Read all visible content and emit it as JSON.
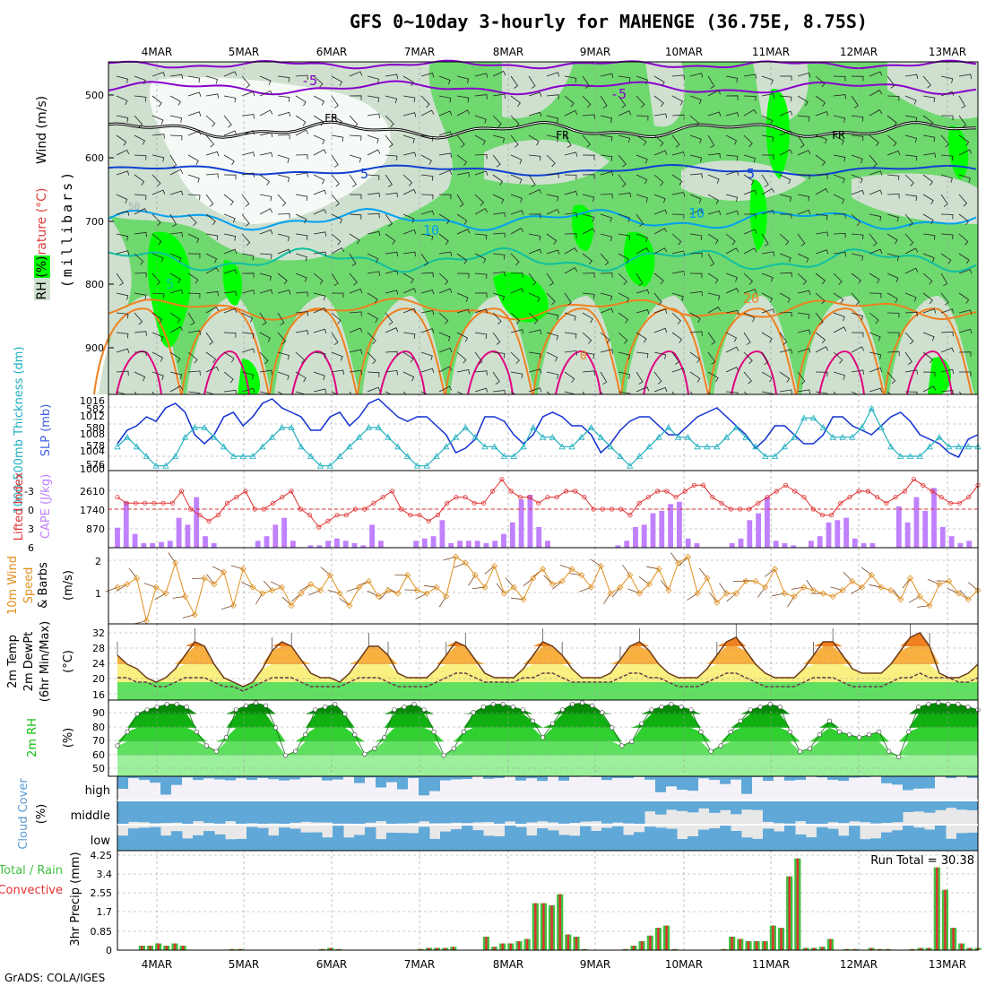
{
  "title": "GFS 0~10day 3-hourly for MAHENGE (36.75E, 8.75S)",
  "footer": "GrADS: COLA/IGES",
  "dates": [
    "4MAR",
    "5MAR",
    "6MAR",
    "7MAR",
    "8MAR",
    "9MAR",
    "10MAR",
    "11MAR",
    "12MAR",
    "13MAR"
  ],
  "colors": {
    "rh_dark": "#6fd86f",
    "rh_light": "#cfe0cf",
    "rh_bright": "#00ff00",
    "purple": "#8800cc",
    "blue": "#1040d0",
    "cyan": "#00a0f0",
    "teal": "#10c0a0",
    "orange": "#f08020",
    "magenta": "#e00080",
    "slp": "#1030d0",
    "thick": "#20b0c0",
    "li": "#e03030",
    "cape": "#c080ff",
    "wind10": "#e09020",
    "temp_hot": "#f08020",
    "temp_warm": "#f8b040",
    "temp_mild": "#f8f080",
    "temp_cool": "#60e060",
    "rh2m": "#10c010",
    "cloud": "#60a8d8",
    "cloud_bg": "#e8e8e8",
    "precip_total": "#40c040",
    "precip_conv": "#e03030"
  },
  "panels": {
    "upper": {
      "ylabel_wind": "Wind (m/s)",
      "ylabel_temp": "Temperature (°C)",
      "ylabel_rh": "RH (%)",
      "ylabel_mb": "(millibars)",
      "yticks": [
        "500",
        "600",
        "700",
        "800",
        "900"
      ],
      "contour_labels": {
        "fr1": "FR",
        "fr2": "FR",
        "fr3": "FR",
        "m5a": "-5",
        "m5b": "-5",
        "p5": "5",
        "p10a": "10",
        "p10b": "10",
        "p5b": "5",
        "p20": "20",
        "p0": "0",
        "rh50": "50"
      }
    },
    "slp": {
      "ylabel_thick": "1000-500mb Thickness (dm)",
      "ylabel_slp": "SLP (mb)",
      "left_ticks": [
        "582",
        "580",
        "578",
        "576"
      ],
      "right_ticks": [
        "1016",
        "1012",
        "1008",
        "1004",
        "1000"
      ]
    },
    "cape": {
      "ylabel_li": "Lifted Index",
      "ylabel_cape": "CAPE (J/kg)",
      "left_ticks": [
        "-3",
        "0",
        "3",
        "6"
      ],
      "right_ticks": [
        "2610",
        "1740",
        "870"
      ]
    },
    "wind10": {
      "ylabel1": "10m Wind",
      "ylabel2": "Speed",
      "ylabel3": "& Barbs",
      "ylabel4": "(m/s)",
      "right_ticks": [
        "2",
        "1"
      ]
    },
    "temp": {
      "ylabel1": "2m Temp",
      "ylabel2": "2m DewPt",
      "ylabel3": "(6hr Min/Max)",
      "ylabel4": "(°C)",
      "right_ticks": [
        "32",
        "28",
        "24",
        "20",
        "16"
      ]
    },
    "rh": {
      "ylabel1": "2m RH",
      "ylabel2": "(%)",
      "right_ticks": [
        "90",
        "80",
        "70",
        "60",
        "50"
      ]
    },
    "cloud": {
      "ylabel1": "Cloud Cover",
      "ylabel2": "(%)",
      "high": "high",
      "middle": "middle",
      "low": "low"
    },
    "precip": {
      "ylabel1": "Total / Rain",
      "ylabel2": "Convective",
      "ylabel3": "3hr Precip (mm)",
      "right_ticks": [
        "4.25",
        "3.4",
        "2.55",
        "1.7",
        "0.85",
        "0"
      ],
      "run_total": "Run Total = 30.38"
    }
  },
  "chart_data": [
    {
      "type": "area",
      "name": "upper_air",
      "yrange_mb": [
        1000,
        450
      ],
      "temp_contours_label": [
        "-5",
        "FR",
        "-5",
        "5",
        "10",
        "20",
        "0"
      ]
    },
    {
      "type": "line",
      "name": "slp_thickness",
      "slp_ylim": [
        1000,
        1016
      ],
      "slp": [
        1006,
        1009,
        1010,
        1012,
        1011,
        1014,
        1015,
        1013,
        1008,
        1006,
        1008,
        1012,
        1013,
        1010,
        1012,
        1015,
        1016,
        1014,
        1013,
        1012,
        1009,
        1009,
        1012,
        1013,
        1010,
        1012,
        1015,
        1016,
        1014,
        1012,
        1011,
        1012,
        1012,
        1010,
        1008,
        1004,
        1005,
        1007,
        1012,
        1012,
        1011,
        1008,
        1006,
        1008,
        1012,
        1013,
        1012,
        1010,
        1010,
        1008,
        1004,
        1006,
        1009,
        1011,
        1012,
        1012,
        1010,
        1008,
        1008,
        1010,
        1012,
        1013,
        1014,
        1012,
        1010,
        1008,
        1005,
        1007,
        1010,
        1010,
        1008,
        1006,
        1006,
        1008,
        1012,
        1012,
        1010,
        1009,
        1008,
        1010,
        1012,
        1013,
        1011,
        1008,
        1007,
        1006,
        1004,
        1003,
        1007,
        1008
      ],
      "thick_ylim": [
        575.5,
        583
      ],
      "thickness": [
        578,
        579,
        578,
        577,
        576,
        576,
        577,
        579,
        580,
        580,
        579,
        578,
        577,
        577,
        577,
        578,
        579,
        580,
        580,
        578,
        577,
        576,
        576,
        577,
        578,
        579,
        580,
        580,
        579,
        578,
        577,
        576,
        576,
        577,
        578,
        579,
        580,
        579,
        578,
        578,
        577,
        577,
        578,
        580,
        579,
        579,
        578,
        578,
        579,
        580,
        579,
        578,
        577,
        576,
        577,
        578,
        579,
        580,
        579,
        579,
        578,
        578,
        578,
        579,
        580,
        579,
        578,
        577,
        577,
        578,
        579,
        581,
        581,
        580,
        579,
        579,
        579,
        580,
        582,
        580,
        578,
        577,
        577,
        577,
        578,
        579,
        578,
        578,
        578,
        578
      ]
    },
    {
      "type": "bar",
      "name": "cape_li",
      "cape_ylim": [
        0,
        3200
      ],
      "cape": [
        870,
        2000,
        600,
        200,
        200,
        250,
        300,
        1300,
        1000,
        2200,
        500,
        200,
        0,
        0,
        0,
        0,
        300,
        500,
        1000,
        1300,
        300,
        0,
        100,
        100,
        300,
        400,
        300,
        200,
        100,
        1000,
        300,
        0,
        0,
        0,
        300,
        400,
        500,
        1200,
        200,
        300,
        300,
        300,
        200,
        300,
        600,
        1100,
        2100,
        2300,
        900,
        300,
        0,
        0,
        0,
        0,
        0,
        0,
        0,
        100,
        300,
        900,
        1000,
        1500,
        1600,
        1900,
        2000,
        400,
        200,
        0,
        0,
        0,
        200,
        400,
        1200,
        1500,
        2200,
        300,
        200,
        100,
        0,
        300,
        500,
        1100,
        1200,
        1300,
        400,
        200,
        200,
        0,
        0,
        1800,
        1100,
        2200,
        1600,
        2600,
        900,
        500,
        200,
        300,
        0
      ],
      "li_ylim": [
        6,
        -6
      ],
      "li": [
        -2,
        -1,
        -1,
        -1,
        -1,
        -1,
        -1,
        -3,
        0,
        1,
        2,
        1,
        -1,
        -2,
        -3,
        0,
        0,
        -1,
        -2,
        -3,
        0,
        1,
        3,
        2,
        1,
        1,
        0,
        0,
        -1,
        -2,
        -3,
        0,
        1,
        1,
        2,
        1,
        -1,
        -2,
        -2,
        -1,
        -1,
        -3,
        -5,
        -3,
        -2,
        -2,
        -1,
        -2,
        -2,
        -3,
        -3,
        -2,
        0,
        0,
        0,
        0,
        1,
        -1,
        -2,
        -3,
        -3,
        -2,
        -3,
        -4,
        -4,
        -2,
        -1,
        0,
        0,
        0,
        -1,
        -2,
        -3,
        -4,
        -3,
        -2,
        0,
        1,
        1,
        -1,
        -2,
        -3,
        -3,
        -2,
        -1,
        -2,
        -3,
        -5,
        -4,
        -3,
        -2,
        -1,
        -1,
        -2,
        -4
      ]
    },
    {
      "type": "line",
      "name": "wind10",
      "ylim": [
        0,
        2.5
      ],
      "speed": [
        1.2,
        1.3,
        1.5,
        0.1,
        1.2,
        1.0,
        2.0,
        0.9,
        0.3,
        1.5,
        1.3,
        1.7,
        0.6,
        1.8,
        1.2,
        1.0,
        1.1,
        1.2,
        0.6,
        1.0,
        1.3,
        1.1,
        1.6,
        1.0,
        0.6,
        1.2,
        1.4,
        0.9,
        1.1,
        1.0,
        1.6,
        1.1,
        1.0,
        1.2,
        0.9,
        2.2,
        2.0,
        1.6,
        1.2,
        1.9,
        1.0,
        1.2,
        0.8,
        1.5,
        1.8,
        1.3,
        1.4,
        1.8,
        1.6,
        1.2,
        1.9,
        1.0,
        1.2,
        1.6,
        1.0,
        1.3,
        1.8,
        1.1,
        2.0,
        2.2,
        1.0,
        1.5,
        0.7,
        1.0,
        1.0,
        1.4,
        1.4,
        1.2,
        1.8,
        1.0,
        0.9,
        1.2,
        1.1,
        1.0,
        0.9,
        1.1,
        1.4,
        1.2,
        1.6,
        1.2,
        1.1,
        0.8,
        1.5,
        0.9,
        0.6,
        1.3,
        1.4,
        1.0,
        0.8,
        1.1
      ]
    },
    {
      "type": "area",
      "name": "temp2m",
      "ylim": [
        16,
        33
      ],
      "temp": [
        26,
        24,
        23,
        21,
        20,
        21,
        23,
        26,
        29,
        28,
        24,
        21,
        20,
        19,
        20,
        23,
        27,
        29,
        28,
        25,
        22,
        21,
        21,
        20,
        22,
        25,
        28,
        28,
        26,
        22,
        21,
        21,
        21,
        23,
        26,
        29,
        28,
        25,
        22,
        21,
        21,
        21,
        23,
        26,
        29,
        28,
        26,
        23,
        21,
        21,
        21,
        22,
        25,
        28,
        29,
        27,
        24,
        22,
        21,
        21,
        21,
        23,
        26,
        29,
        30,
        27,
        24,
        22,
        21,
        21,
        21,
        23,
        26,
        29,
        29,
        26,
        23,
        22,
        22,
        22,
        24,
        27,
        30,
        31,
        28,
        22,
        21,
        21,
        22,
        24
      ],
      "dewpt": [
        21,
        21,
        20,
        20,
        19,
        19,
        20,
        21,
        21,
        21,
        20,
        19,
        19,
        18,
        19,
        20,
        21,
        21,
        21,
        20,
        19,
        19,
        19,
        19,
        20,
        21,
        21,
        21,
        20,
        19,
        19,
        19,
        19,
        20,
        21,
        22,
        22,
        21,
        20,
        20,
        20,
        20,
        21,
        21,
        22,
        22,
        21,
        20,
        20,
        20,
        20,
        20,
        21,
        22,
        22,
        21,
        21,
        20,
        19,
        19,
        19,
        20,
        21,
        22,
        22,
        21,
        20,
        19,
        19,
        19,
        19,
        20,
        21,
        21,
        21,
        20,
        19,
        19,
        19,
        19,
        20,
        21,
        21,
        22,
        21,
        21,
        21,
        20,
        20,
        21
      ]
    },
    {
      "type": "area",
      "name": "rh2m",
      "ylim": [
        40,
        95
      ],
      "rh": [
        62,
        72,
        85,
        88,
        90,
        92,
        92,
        90,
        72,
        62,
        58,
        68,
        88,
        91,
        93,
        91,
        75,
        55,
        58,
        70,
        88,
        90,
        92,
        85,
        70,
        56,
        60,
        68,
        88,
        90,
        92,
        88,
        72,
        55,
        60,
        72,
        86,
        90,
        92,
        92,
        90,
        88,
        80,
        68,
        78,
        88,
        92,
        93,
        91,
        86,
        75,
        62,
        65,
        78,
        88,
        90,
        92,
        90,
        88,
        72,
        58,
        62,
        72,
        80,
        88,
        90,
        92,
        90,
        72,
        58,
        60,
        70,
        80,
        72,
        70,
        68,
        70,
        72,
        58,
        54,
        72,
        90,
        92,
        93,
        92,
        92,
        90,
        88
      ]
    },
    {
      "type": "bar",
      "name": "cloud_cover",
      "ylim": [
        0,
        100
      ]
    },
    {
      "type": "bar",
      "name": "precip_3hr",
      "ylim": [
        0,
        4.5
      ],
      "run_total": 30.38,
      "total": [
        0,
        0,
        0,
        0.2,
        0.2,
        0.3,
        0.2,
        0.3,
        0.2,
        0,
        0,
        0,
        0,
        0,
        0.05,
        0.05,
        0,
        0,
        0,
        0,
        0,
        0,
        0,
        0,
        0,
        0.05,
        0.1,
        0.05,
        0,
        0,
        0,
        0,
        0,
        0,
        0,
        0,
        0,
        0.05,
        0.1,
        0.1,
        0.1,
        0.15,
        0,
        0,
        0,
        0.6,
        0.15,
        0.3,
        0.3,
        0.4,
        0.5,
        2.1,
        2.1,
        2.0,
        2.5,
        0.7,
        0.6,
        0.05,
        0,
        0,
        0,
        0,
        0.05,
        0.2,
        0.4,
        0.65,
        1.0,
        1.1,
        0.05,
        0,
        0,
        0,
        0,
        0,
        0.05,
        0.6,
        0.5,
        0.4,
        0.4,
        0.4,
        1.1,
        1.0,
        3.3,
        4.1,
        0.1,
        0.1,
        0.15,
        0.5,
        0,
        0.05,
        0.05,
        0,
        0.1,
        0.05,
        0.05,
        0,
        0,
        0.05,
        0.1,
        0.1,
        3.7,
        2.7,
        1.0,
        0.3,
        0.1,
        0.1
      ]
    }
  ]
}
